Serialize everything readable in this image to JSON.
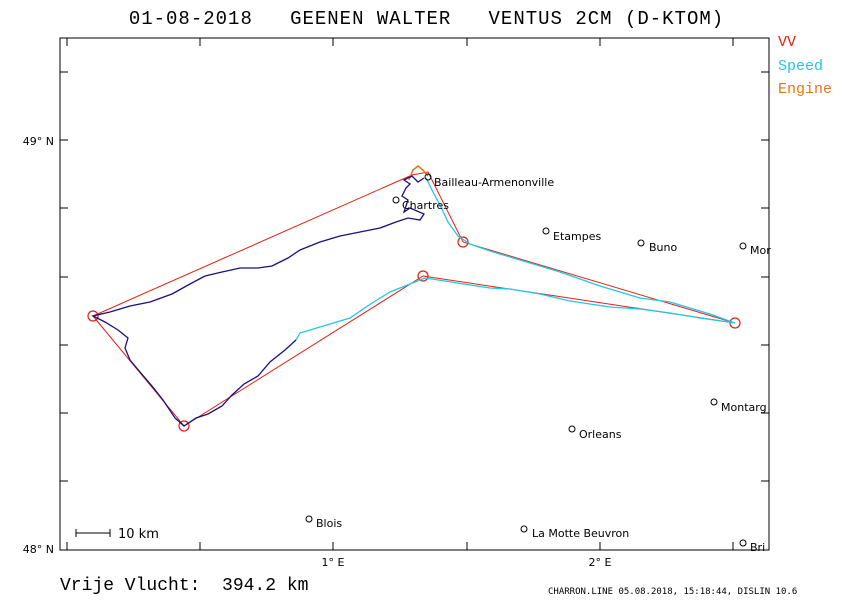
{
  "header": {
    "date": "01-08-2018",
    "pilot": "GEENEN WALTER",
    "glider": "VENTUS 2CM (D-KTOM)"
  },
  "legend": [
    {
      "label": "VV",
      "color": "#e02010"
    },
    {
      "label": "Speed",
      "color": "#20c8e8"
    },
    {
      "label": "Engine",
      "color": "#e07818"
    }
  ],
  "axes": {
    "y_ticks": [
      {
        "label": "49° N"
      },
      {
        "label": "48° N"
      }
    ],
    "x_ticks": [
      {
        "label": "1° E"
      },
      {
        "label": "2° E"
      }
    ]
  },
  "scale_bar": {
    "label": "10  km"
  },
  "towns": [
    {
      "name": "Bailleau-Armenonville"
    },
    {
      "name": "Chartres"
    },
    {
      "name": "Etampes"
    },
    {
      "name": "Buno"
    },
    {
      "name": "Mor"
    },
    {
      "name": "Montarg"
    },
    {
      "name": "Orleans"
    },
    {
      "name": "Blois"
    },
    {
      "name": "La Motte Beuvron"
    },
    {
      "name": "Bri"
    }
  ],
  "footer": {
    "distance": "Vrije Vlucht:  394.2 km",
    "credit": "CHARRON.LINE 05.08.2018, 15:18:44, DISLIN 10.6"
  },
  "colors": {
    "task": "#e02010",
    "track_dark": "#1a1080",
    "track_speed": "#20c8e8",
    "engine": "#e07818"
  }
}
